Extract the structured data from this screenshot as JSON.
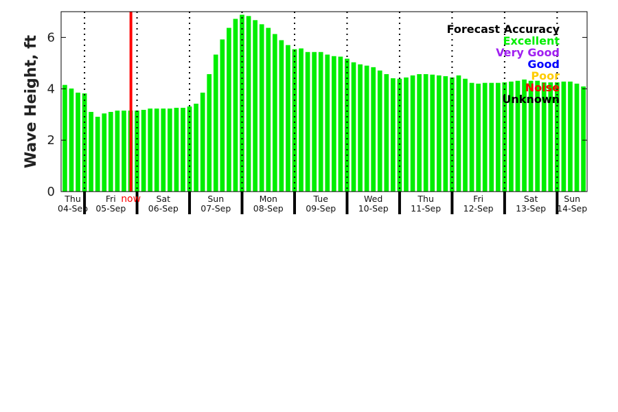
{
  "chart_data": {
    "type": "bar",
    "title": "",
    "xlabel": "",
    "ylabel": "Wave Height, ft",
    "ylim": [
      0,
      7
    ],
    "yticks": [
      0,
      2,
      4,
      6
    ],
    "x_units": "hours since Thu 04-Sep 00:00",
    "xlim": [
      13.3,
      253.7
    ],
    "bar_start_hour": 15,
    "bar_step_hours": 3,
    "bar_color": "#00ee00",
    "values": [
      4.15,
      4.01,
      3.85,
      3.82,
      3.1,
      2.91,
      3.04,
      3.1,
      3.15,
      3.15,
      3.15,
      3.15,
      3.18,
      3.23,
      3.23,
      3.23,
      3.23,
      3.26,
      3.26,
      3.31,
      3.42,
      3.85,
      4.57,
      5.33,
      5.92,
      6.37,
      6.72,
      6.88,
      6.83,
      6.67,
      6.51,
      6.37,
      6.13,
      5.89,
      5.7,
      5.54,
      5.57,
      5.43,
      5.43,
      5.43,
      5.33,
      5.27,
      5.25,
      5.17,
      5.03,
      4.95,
      4.9,
      4.84,
      4.71,
      4.57,
      4.41,
      4.39,
      4.44,
      4.52,
      4.57,
      4.57,
      4.55,
      4.52,
      4.49,
      4.44,
      4.52,
      4.39,
      4.23,
      4.2,
      4.23,
      4.23,
      4.23,
      4.25,
      4.28,
      4.31,
      4.36,
      4.31,
      4.31,
      4.25,
      4.25,
      4.25,
      4.28,
      4.28,
      4.2,
      4.09
    ],
    "days": [
      {
        "day": "Thu",
        "date": "04-Sep"
      },
      {
        "day": "Fri",
        "date": "05-Sep"
      },
      {
        "day": "Sat",
        "date": "06-Sep"
      },
      {
        "day": "Sun",
        "date": "07-Sep"
      },
      {
        "day": "Mon",
        "date": "08-Sep"
      },
      {
        "day": "Tue",
        "date": "09-Sep"
      },
      {
        "day": "Wed",
        "date": "10-Sep"
      },
      {
        "day": "Thu",
        "date": "11-Sep"
      },
      {
        "day": "Fri",
        "date": "12-Sep"
      },
      {
        "day": "Sat",
        "date": "13-Sep"
      },
      {
        "day": "Sun",
        "date": "14-Sep"
      }
    ],
    "now_marker": {
      "label": "now",
      "hour": 45.2,
      "color": "#ff0000"
    },
    "legend": {
      "title": "Forecast Accuracy",
      "placement": "top-right",
      "entries": [
        {
          "label": "Excellent",
          "color": "#00ee00"
        },
        {
          "label": "Very Good",
          "color": "#a020f0"
        },
        {
          "label": "Good",
          "color": "#0000ff"
        },
        {
          "label": "Poor",
          "color": "#ffcc00"
        },
        {
          "label": "Noise",
          "color": "#ff0000"
        },
        {
          "label": "Unknown",
          "color": "#000000"
        }
      ]
    }
  }
}
